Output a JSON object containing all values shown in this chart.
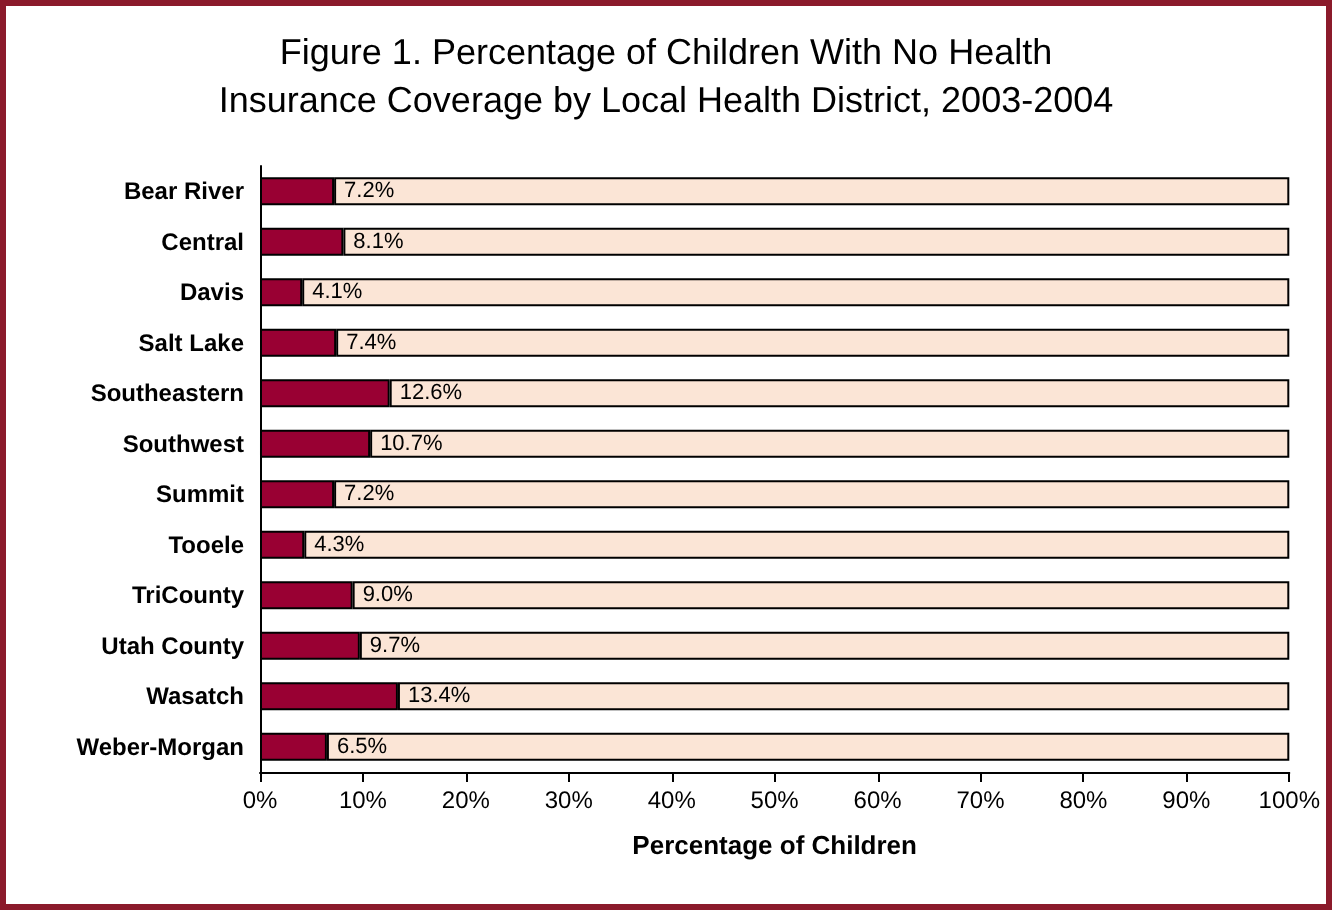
{
  "chart_data": {
    "type": "bar",
    "orientation": "horizontal",
    "stacked": true,
    "title": "Figure 1. Percentage of Children With No Health\nInsurance Coverage by Local Health District, 2003-2004",
    "xlabel": "Percentage of Children",
    "categories": [
      "Bear River",
      "Central",
      "Davis",
      "Salt Lake",
      "Southeastern",
      "Southwest",
      "Summit",
      "Tooele",
      "TriCounty",
      "Utah County",
      "Wasatch",
      "Weber-Morgan"
    ],
    "series": [
      {
        "color": "#990033",
        "values": [
          7.2,
          8.1,
          4.1,
          7.4,
          12.6,
          10.7,
          7.2,
          4.3,
          9.0,
          9.7,
          13.4,
          6.5
        ],
        "value_labels": [
          "7.2%",
          "8.1%",
          "4.1%",
          "7.4%",
          "12.6%",
          "10.7%",
          "7.2%",
          "4.3%",
          "9.0%",
          "9.7%",
          "13.4%",
          "6.5%"
        ]
      },
      {
        "color": "#fbe5d6",
        "values": [
          92.8,
          91.9,
          95.9,
          92.6,
          87.4,
          89.3,
          92.8,
          95.7,
          91.0,
          90.3,
          86.6,
          93.5
        ]
      }
    ],
    "xlim": [
      0,
      100
    ],
    "xticks": [
      {
        "value": 0,
        "label": "0%"
      },
      {
        "value": 10,
        "label": "10%"
      },
      {
        "value": 20,
        "label": "20%"
      },
      {
        "value": 30,
        "label": "30%"
      },
      {
        "value": 40,
        "label": "40%"
      },
      {
        "value": 50,
        "label": "50%"
      },
      {
        "value": 60,
        "label": "60%"
      },
      {
        "value": 70,
        "label": "70%"
      },
      {
        "value": 80,
        "label": "80%"
      },
      {
        "value": 90,
        "label": "90%"
      },
      {
        "value": 100,
        "label": "100%"
      }
    ]
  }
}
